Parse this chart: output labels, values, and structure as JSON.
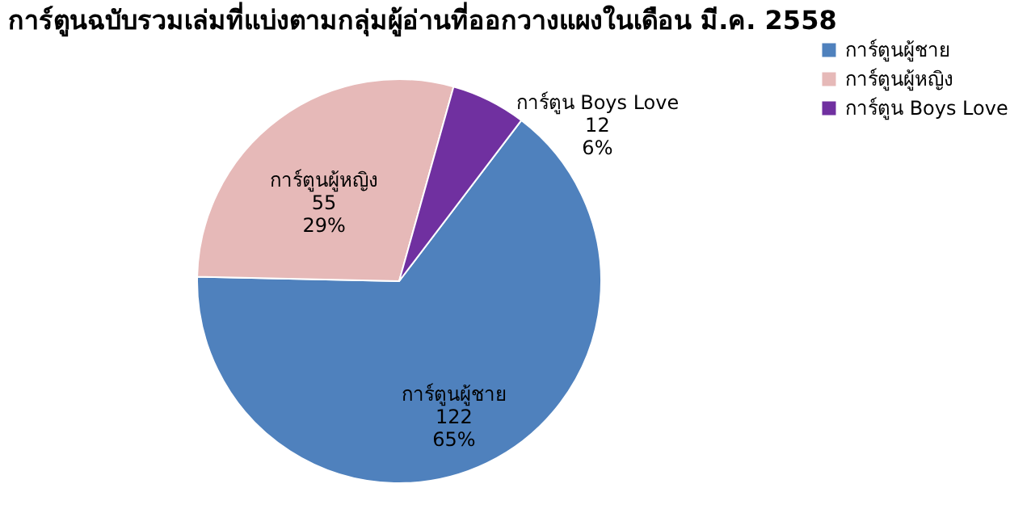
{
  "chart_data": {
    "type": "pie",
    "title": "การ์ตูนฉบับรวมเล่มที่แบ่งตามกลุ่มผู้อ่านที่ออกวางแผงในเดือน มี.ค. 2558",
    "categories": [
      "การ์ตูนผู้ชาย",
      "การ์ตูนผู้หญิง",
      "การ์ตูน  Boys Love"
    ],
    "values": [
      65,
      29,
      6
    ],
    "colors": [
      "#4f81bd",
      "#e6b9b8",
      "#7030a0"
    ],
    "value_labels": [
      "122\n65%",
      "55\n29%",
      "12\n6%"
    ],
    "legend": "right"
  }
}
